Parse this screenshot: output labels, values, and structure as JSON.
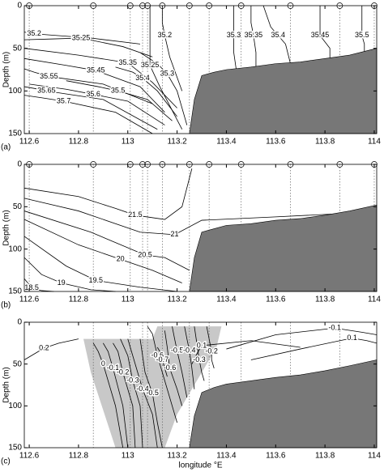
{
  "chart_data": [
    {
      "type": "contour",
      "panel_label": "(a)",
      "ylabel": "Depth (m)",
      "invert_y": true,
      "xlim": [
        112.58,
        114.01
      ],
      "ylim": [
        0,
        150
      ],
      "xticks": [
        112.6,
        112.8,
        113,
        113.2,
        113.4,
        113.6,
        113.8,
        114
      ],
      "yticks": [
        0,
        50,
        100,
        150
      ],
      "stations": [
        112.6,
        112.86,
        113.01,
        113.06,
        113.08,
        113.14,
        113.25,
        113.33,
        113.46,
        113.66,
        113.86,
        114.0
      ],
      "station_markers": true,
      "seabed": {
        "x": [
          113.25,
          113.27,
          113.3,
          113.35,
          113.4,
          113.5,
          113.6,
          113.7,
          113.8,
          113.9,
          114.01
        ],
        "depth": [
          150,
          110,
          82,
          78,
          75,
          72,
          68,
          66,
          62,
          58,
          50
        ]
      },
      "contours": [
        {
          "level": 35.2,
          "x": [
            112.58,
            112.6,
            112.62,
            112.85,
            113.05
          ],
          "depth": [
            31,
            32,
            33,
            38,
            45
          ]
        },
        {
          "level": 35.25,
          "x": [
            112.58,
            112.7,
            112.81,
            112.98,
            113.1
          ],
          "depth": [
            40,
            39,
            38,
            48,
            60
          ]
        },
        {
          "level": 35.35,
          "x": [
            112.58,
            112.8,
            113.0,
            113.1,
            113.2
          ],
          "depth": [
            50,
            58,
            67,
            90,
            120
          ]
        },
        {
          "level": 35.45,
          "x": [
            112.58,
            112.75,
            112.87,
            113.05,
            113.15
          ],
          "depth": [
            62,
            70,
            76,
            95,
            125
          ]
        },
        {
          "level": 35.55,
          "x": [
            112.58,
            112.62,
            112.68,
            112.9,
            113.1
          ],
          "depth": [
            74,
            78,
            83,
            92,
            115
          ]
        },
        {
          "level": 35.5,
          "x": [
            112.75,
            112.88,
            112.96,
            113.08,
            113.18
          ],
          "depth": [
            88,
            95,
            100,
            110,
            135
          ]
        },
        {
          "level": 35.6,
          "x": [
            112.6,
            112.75,
            112.86,
            113.0,
            113.15
          ],
          "depth": [
            92,
            98,
            104,
            112,
            140
          ]
        },
        {
          "level": 35.65,
          "x": [
            112.58,
            112.62,
            112.67,
            112.9,
            113.12
          ],
          "depth": [
            95,
            97,
            100,
            110,
            145
          ]
        },
        {
          "level": 35.7,
          "x": [
            112.58,
            112.65,
            112.74,
            112.95,
            113.1
          ],
          "depth": [
            105,
            108,
            112,
            125,
            150
          ]
        },
        {
          "level": 35.4,
          "x": [
            112.95,
            113.02,
            113.06,
            113.12,
            113.2
          ],
          "depth": [
            72,
            78,
            85,
            100,
            130
          ]
        },
        {
          "level": 35.3,
          "x": [
            113.05,
            113.12,
            113.16,
            113.2,
            113.24
          ],
          "depth": [
            55,
            68,
            80,
            100,
            140
          ]
        },
        {
          "level": 35.25,
          "x": [
            113.09,
            113.09,
            113.09,
            113.13,
            113.22
          ],
          "depth": [
            0,
            40,
            70,
            95,
            145
          ]
        },
        {
          "level": 35.2,
          "x": [
            113.14,
            113.14,
            113.15,
            113.17,
            113.22
          ],
          "depth": [
            0,
            20,
            35,
            60,
            100
          ]
        },
        {
          "level": 35.3,
          "x": [
            113.43,
            113.43,
            113.43,
            113.43,
            113.44
          ],
          "depth": [
            0,
            20,
            35,
            55,
            75
          ]
        },
        {
          "level": 35.35,
          "x": [
            113.5,
            113.5,
            113.51,
            113.52,
            113.52
          ],
          "depth": [
            0,
            20,
            35,
            55,
            72
          ]
        },
        {
          "level": 35.4,
          "x": [
            113.55,
            113.58,
            113.61,
            113.64,
            113.66
          ],
          "depth": [
            0,
            25,
            35,
            45,
            68
          ]
        },
        {
          "level": 35.45,
          "x": [
            113.78,
            113.78,
            113.78,
            113.82,
            113.82
          ],
          "depth": [
            0,
            20,
            35,
            50,
            62
          ]
        },
        {
          "level": 35.5,
          "x": [
            113.95,
            113.95,
            113.95,
            113.96,
            113.96
          ],
          "depth": [
            0,
            20,
            35,
            45,
            54
          ]
        }
      ]
    },
    {
      "type": "contour",
      "panel_label": "(b)",
      "ylabel": "Depth (m)",
      "invert_y": true,
      "xlim": [
        112.58,
        114.01
      ],
      "ylim": [
        0,
        150
      ],
      "xticks": [
        112.6,
        112.8,
        113,
        113.2,
        113.4,
        113.6,
        113.8,
        114
      ],
      "yticks": [
        0,
        50,
        100,
        150
      ],
      "stations": [
        112.6,
        112.86,
        113.01,
        113.06,
        113.08,
        113.14,
        113.25,
        113.33,
        113.46,
        113.66,
        113.86,
        114.0
      ],
      "station_markers": true,
      "seabed": {
        "x": [
          113.25,
          113.27,
          113.3,
          113.35,
          113.4,
          113.5,
          113.6,
          113.7,
          113.8,
          113.9,
          114.01
        ],
        "depth": [
          150,
          110,
          80,
          76,
          72,
          70,
          66,
          64,
          60,
          55,
          48
        ]
      },
      "contours": [
        {
          "level": 21.5,
          "x": [
            112.58,
            112.8,
            112.95,
            113.03,
            113.15,
            113.22,
            113.26
          ],
          "depth": [
            28,
            38,
            52,
            60,
            65,
            50,
            5
          ]
        },
        {
          "level": 21,
          "x": [
            112.58,
            112.8,
            113.05,
            113.19,
            113.3,
            113.6,
            114.01
          ],
          "depth": [
            40,
            55,
            80,
            83,
            66,
            62,
            56
          ]
        },
        {
          "level": 20.5,
          "x": [
            112.58,
            112.85,
            113.07,
            113.15,
            113.25
          ],
          "depth": [
            55,
            80,
            107,
            110,
            125
          ]
        },
        {
          "level": 20,
          "x": [
            112.58,
            112.8,
            112.97,
            113.1,
            113.22
          ],
          "depth": [
            65,
            95,
            112,
            125,
            140
          ]
        },
        {
          "level": 19.5,
          "x": [
            112.58,
            112.75,
            112.87,
            113.05,
            113.2
          ],
          "depth": [
            85,
            120,
            137,
            145,
            150
          ]
        },
        {
          "level": 19,
          "x": [
            112.58,
            112.65,
            112.73,
            112.85,
            112.95
          ],
          "depth": [
            110,
            130,
            140,
            148,
            150
          ]
        },
        {
          "level": 18.5,
          "x": [
            112.58,
            112.6,
            112.61,
            112.65,
            112.7
          ],
          "depth": [
            135,
            142,
            146,
            149,
            150
          ]
        }
      ]
    },
    {
      "type": "contour",
      "panel_label": "(c)",
      "ylabel": "Depth (m)",
      "xlabel": "longitude °E",
      "invert_y": true,
      "xlim": [
        112.58,
        114.01
      ],
      "ylim": [
        0,
        150
      ],
      "xticks": [
        112.6,
        112.8,
        113,
        113.2,
        113.4,
        113.6,
        113.8,
        114
      ],
      "yticks": [
        0,
        50,
        100,
        150
      ],
      "stations": [
        112.86,
        113.01,
        113.06,
        113.08,
        113.14,
        113.25,
        113.33,
        113.46,
        113.66,
        113.86
      ],
      "station_markers": false,
      "seabed": {
        "x": [
          113.25,
          113.27,
          113.3,
          113.35,
          113.4,
          113.5,
          113.6,
          113.7,
          113.8,
          113.9,
          114.01
        ],
        "depth": [
          150,
          112,
          84,
          78,
          74,
          70,
          66,
          63,
          58,
          52,
          45
        ]
      },
      "shaded_region": {
        "x": [
          112.82,
          113.1,
          113.12,
          113.38,
          113.36,
          113.3,
          113.2,
          113.15,
          112.95,
          112.85
        ],
        "depth": [
          20,
          20,
          5,
          5,
          30,
          60,
          110,
          150,
          150,
          60
        ]
      },
      "contours": [
        {
          "level": 0.2,
          "x": [
            112.58,
            112.62,
            112.66,
            112.72,
            112.8
          ],
          "depth": [
            45,
            38,
            31,
            25,
            20
          ]
        },
        {
          "level": 0,
          "x": [
            112.86,
            112.88,
            112.9,
            112.95,
            112.98
          ],
          "depth": [
            25,
            35,
            50,
            100,
            150
          ]
        },
        {
          "level": -0.1,
          "x": [
            112.9,
            112.92,
            112.94,
            112.98,
            113.0
          ],
          "depth": [
            25,
            35,
            55,
            100,
            150
          ]
        },
        {
          "level": -0.2,
          "x": [
            112.94,
            112.96,
            112.98,
            113.02,
            113.03
          ],
          "depth": [
            25,
            35,
            60,
            100,
            150
          ]
        },
        {
          "level": -0.3,
          "x": [
            112.97,
            113.0,
            113.02,
            113.05,
            113.06
          ],
          "depth": [
            20,
            40,
            70,
            100,
            150
          ]
        },
        {
          "level": -0.4,
          "x": [
            113.0,
            113.03,
            113.06,
            113.1,
            113.12
          ],
          "depth": [
            20,
            50,
            80,
            110,
            150
          ]
        },
        {
          "level": -0.5,
          "x": [
            113.05,
            113.07,
            113.1,
            113.12,
            113.14
          ],
          "depth": [
            20,
            60,
            85,
            120,
            150
          ]
        },
        {
          "level": -0.6,
          "x": [
            113.08,
            113.1,
            113.12,
            113.16,
            113.2
          ],
          "depth": [
            5,
            14,
            40,
            80,
            120
          ]
        },
        {
          "level": -0.7,
          "x": [
            113.12,
            113.13,
            113.14,
            113.15,
            113.16
          ],
          "depth": [
            30,
            35,
            45,
            55,
            65
          ]
        },
        {
          "level": -0.6,
          "x": [
            113.15,
            113.16,
            113.17,
            113.2,
            113.22
          ],
          "depth": [
            10,
            30,
            55,
            80,
            100
          ]
        },
        {
          "level": -0.5,
          "x": [
            113.18,
            113.19,
            113.2,
            113.22,
            113.24
          ],
          "depth": [
            5,
            20,
            34,
            60,
            90
          ]
        },
        {
          "level": -0.4,
          "x": [
            113.23,
            113.24,
            113.25,
            113.26,
            113.27
          ],
          "depth": [
            5,
            20,
            34,
            55,
            80
          ]
        },
        {
          "level": -0.3,
          "x": [
            113.27,
            113.28,
            113.29,
            113.3,
            113.31
          ],
          "depth": [
            5,
            25,
            45,
            60,
            70
          ]
        },
        {
          "level": -0.2,
          "x": [
            113.32,
            113.33,
            113.34,
            113.34,
            113.35
          ],
          "depth": [
            5,
            20,
            35,
            45,
            55
          ]
        },
        {
          "level": 0.1,
          "x": [
            113.26,
            113.28,
            113.3,
            113.5,
            113.7
          ],
          "depth": [
            50,
            38,
            28,
            22,
            30
          ]
        },
        {
          "level": -0.1,
          "x": [
            113.4,
            113.6,
            113.84,
            113.95,
            114.01
          ],
          "depth": [
            32,
            15,
            7,
            12,
            15
          ]
        },
        {
          "level": 0.1,
          "x": [
            113.5,
            113.7,
            113.91,
            113.97,
            114.01
          ],
          "depth": [
            45,
            32,
            19,
            22,
            25
          ]
        }
      ]
    }
  ]
}
